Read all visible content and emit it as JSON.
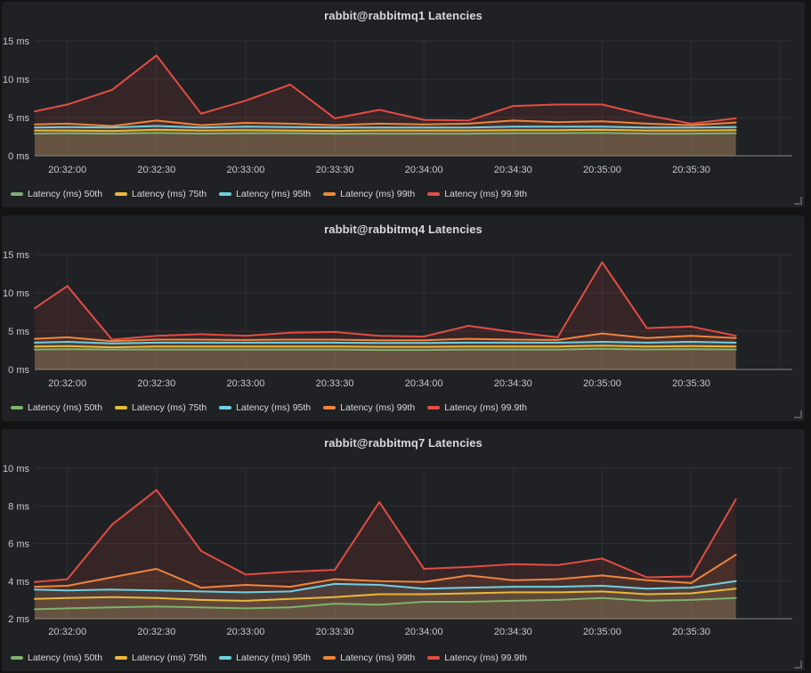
{
  "page": {
    "bg": "#131314",
    "panel_bg": "#202125",
    "grid_color": "#2f3035",
    "axis_line_color": "#85868a",
    "text_color": "#d8d9da",
    "tick_text_color": "#c7c8ca"
  },
  "chart_data": [
    {
      "type": "area",
      "title": "rabbit@rabbitmq1 Latencies",
      "unit": "ms",
      "ylim": [
        0,
        15
      ],
      "yticks": [
        0,
        5,
        10,
        15
      ],
      "grid": true,
      "legend_position": "bottom",
      "xlim_seconds": [
        -11,
        244
      ],
      "x_tick_seconds": [
        0,
        30,
        60,
        90,
        120,
        150,
        180,
        210
      ],
      "x_tick_labels": [
        "20:32:00",
        "20:32:30",
        "20:33:00",
        "20:33:30",
        "20:34:00",
        "20:34:30",
        "20:35:00",
        "20:35:30"
      ],
      "x_gridline_seconds": [
        0,
        30,
        60,
        90,
        120,
        150,
        180,
        210,
        240
      ],
      "x_seconds": [
        -11,
        0,
        15,
        30,
        45,
        60,
        75,
        90,
        105,
        120,
        135,
        150,
        165,
        180,
        195,
        210,
        225
      ],
      "series": [
        {
          "name": "Latency (ms) 50th",
          "color": "#7EB26D",
          "values": [
            2.9,
            2.95,
            2.9,
            3.0,
            2.9,
            2.95,
            2.95,
            2.9,
            2.9,
            2.9,
            2.9,
            2.95,
            2.95,
            3.0,
            2.9,
            2.9,
            2.95
          ]
        },
        {
          "name": "Latency (ms) 75th",
          "color": "#EAB839",
          "values": [
            3.3,
            3.3,
            3.25,
            3.4,
            3.3,
            3.35,
            3.3,
            3.25,
            3.3,
            3.3,
            3.3,
            3.35,
            3.35,
            3.4,
            3.3,
            3.3,
            3.35
          ]
        },
        {
          "name": "Latency (ms) 95th",
          "color": "#6ED0E0",
          "values": [
            3.7,
            3.75,
            3.7,
            3.9,
            3.7,
            3.8,
            3.75,
            3.7,
            3.7,
            3.7,
            3.7,
            3.8,
            3.8,
            3.8,
            3.7,
            3.7,
            3.75
          ]
        },
        {
          "name": "Latency (ms) 99th",
          "color": "#EF843C",
          "values": [
            4.1,
            4.2,
            3.9,
            4.6,
            4.0,
            4.3,
            4.2,
            4.0,
            4.2,
            4.1,
            4.2,
            4.6,
            4.4,
            4.5,
            4.2,
            4.0,
            4.35
          ]
        },
        {
          "name": "Latency (ms) 99.9th",
          "color": "#E24D42",
          "values": [
            5.8,
            6.7,
            8.6,
            13.1,
            5.5,
            7.2,
            9.3,
            4.9,
            6.0,
            4.7,
            4.6,
            6.5,
            6.7,
            6.7,
            5.3,
            4.2,
            4.9
          ]
        }
      ]
    },
    {
      "type": "area",
      "title": "rabbit@rabbitmq4 Latencies",
      "unit": "ms",
      "ylim": [
        0,
        15
      ],
      "yticks": [
        0,
        5,
        10,
        15
      ],
      "grid": true,
      "legend_position": "bottom",
      "xlim_seconds": [
        -11,
        244
      ],
      "x_tick_seconds": [
        0,
        30,
        60,
        90,
        120,
        150,
        180,
        210
      ],
      "x_tick_labels": [
        "20:32:00",
        "20:32:30",
        "20:33:00",
        "20:33:30",
        "20:34:00",
        "20:34:30",
        "20:35:00",
        "20:35:30"
      ],
      "x_gridline_seconds": [
        0,
        30,
        60,
        90,
        120,
        150,
        180,
        210,
        240
      ],
      "x_seconds": [
        -11,
        0,
        15,
        30,
        45,
        60,
        75,
        90,
        105,
        120,
        135,
        150,
        165,
        180,
        195,
        210,
        225
      ],
      "series": [
        {
          "name": "Latency (ms) 50th",
          "color": "#7EB26D",
          "values": [
            2.6,
            2.65,
            2.6,
            2.6,
            2.6,
            2.6,
            2.6,
            2.6,
            2.55,
            2.55,
            2.6,
            2.6,
            2.6,
            2.7,
            2.6,
            2.65,
            2.6
          ]
        },
        {
          "name": "Latency (ms) 75th",
          "color": "#EAB839",
          "values": [
            3.0,
            3.05,
            2.9,
            3.0,
            3.0,
            3.0,
            3.0,
            3.0,
            2.95,
            2.95,
            3.0,
            3.0,
            3.0,
            3.1,
            3.0,
            3.05,
            3.0
          ]
        },
        {
          "name": "Latency (ms) 95th",
          "color": "#6ED0E0",
          "values": [
            3.5,
            3.6,
            3.4,
            3.5,
            3.5,
            3.5,
            3.5,
            3.5,
            3.45,
            3.45,
            3.5,
            3.5,
            3.5,
            3.6,
            3.5,
            3.6,
            3.5
          ]
        },
        {
          "name": "Latency (ms) 99th",
          "color": "#EF843C",
          "values": [
            4.0,
            4.2,
            3.7,
            3.9,
            3.9,
            3.85,
            3.9,
            3.9,
            3.8,
            3.8,
            4.0,
            3.9,
            3.85,
            4.7,
            4.1,
            4.4,
            4.1
          ]
        },
        {
          "name": "Latency (ms) 99.9th",
          "color": "#E24D42",
          "values": [
            8.0,
            10.9,
            3.9,
            4.4,
            4.6,
            4.4,
            4.8,
            4.9,
            4.4,
            4.3,
            5.7,
            4.9,
            4.2,
            14.0,
            5.4,
            5.6,
            4.4
          ]
        }
      ]
    },
    {
      "type": "area",
      "title": "rabbit@rabbitmq7 Latencies",
      "unit": "ms",
      "ylim": [
        2,
        10
      ],
      "yticks": [
        2,
        4,
        6,
        8,
        10
      ],
      "grid": true,
      "legend_position": "bottom",
      "xlim_seconds": [
        -11,
        244
      ],
      "x_tick_seconds": [
        0,
        30,
        60,
        90,
        120,
        150,
        180,
        210
      ],
      "x_tick_labels": [
        "20:32:00",
        "20:32:30",
        "20:33:00",
        "20:33:30",
        "20:34:00",
        "20:34:30",
        "20:35:00",
        "20:35:30"
      ],
      "x_gridline_seconds": [
        0,
        30,
        60,
        90,
        120,
        150,
        180,
        210,
        240
      ],
      "x_seconds": [
        -11,
        0,
        15,
        30,
        45,
        60,
        75,
        90,
        105,
        120,
        135,
        150,
        165,
        180,
        195,
        210,
        225
      ],
      "series": [
        {
          "name": "Latency (ms) 50th",
          "color": "#7EB26D",
          "values": [
            2.5,
            2.55,
            2.6,
            2.65,
            2.6,
            2.55,
            2.6,
            2.8,
            2.75,
            2.9,
            2.9,
            2.95,
            3.0,
            3.1,
            2.95,
            3.0,
            3.1
          ]
        },
        {
          "name": "Latency (ms) 75th",
          "color": "#EAB839",
          "values": [
            3.05,
            3.1,
            3.15,
            3.1,
            3.0,
            2.95,
            3.05,
            3.15,
            3.3,
            3.3,
            3.35,
            3.4,
            3.4,
            3.45,
            3.3,
            3.35,
            3.6
          ]
        },
        {
          "name": "Latency (ms) 95th",
          "color": "#6ED0E0",
          "values": [
            3.55,
            3.5,
            3.55,
            3.5,
            3.45,
            3.4,
            3.45,
            3.85,
            3.8,
            3.6,
            3.65,
            3.7,
            3.7,
            3.75,
            3.6,
            3.65,
            4.0
          ]
        },
        {
          "name": "Latency (ms) 99th",
          "color": "#EF843C",
          "values": [
            3.7,
            3.75,
            4.2,
            4.65,
            3.65,
            3.8,
            3.7,
            4.1,
            4.0,
            3.95,
            4.3,
            4.05,
            4.1,
            4.3,
            4.05,
            3.9,
            5.4
          ]
        },
        {
          "name": "Latency (ms) 99.9th",
          "color": "#E24D42",
          "values": [
            3.95,
            4.1,
            7.0,
            8.85,
            5.6,
            4.35,
            4.5,
            4.6,
            8.2,
            4.65,
            4.75,
            4.9,
            4.85,
            5.2,
            4.2,
            4.25,
            8.35
          ]
        }
      ]
    }
  ]
}
